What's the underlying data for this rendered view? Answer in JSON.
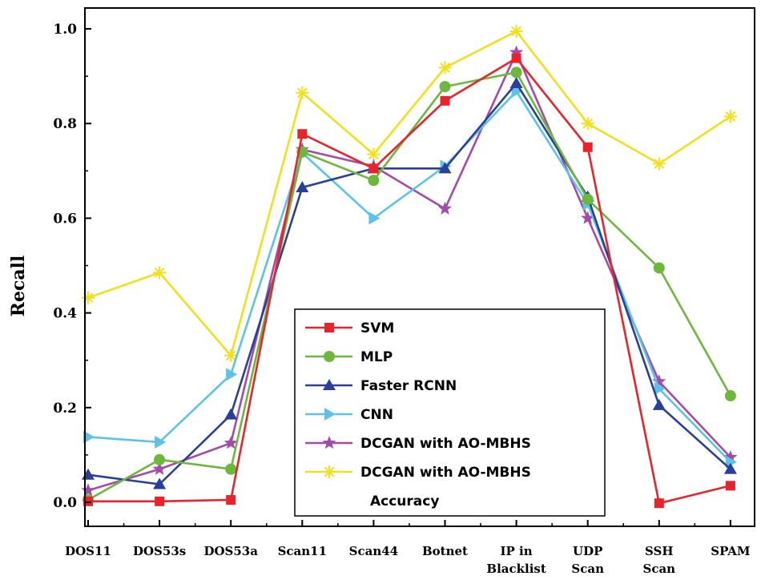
{
  "chart_data": {
    "type": "line",
    "title": "",
    "xlabel": "",
    "ylabel": "Recall",
    "ylim": [
      0.0,
      1.0
    ],
    "yticks": [
      "0.0",
      "0.2",
      "0.4",
      "0.6",
      "0.8",
      "1.0"
    ],
    "categories": [
      [
        "DOS11"
      ],
      [
        "DOS53s"
      ],
      [
        "DOS53a"
      ],
      [
        "Scan11"
      ],
      [
        "Scan44"
      ],
      [
        "Botnet"
      ],
      [
        "IP in",
        "Blacklist"
      ],
      [
        "UDP",
        "Scan"
      ],
      [
        "SSH",
        "Scan"
      ],
      [
        "SPAM"
      ]
    ],
    "legend_position": "center",
    "series": [
      {
        "name": "SVM",
        "color": "#e8242a",
        "marker": "square",
        "values": [
          0.002,
          0.002,
          0.005,
          0.778,
          0.705,
          0.848,
          0.938,
          0.75,
          -0.002,
          0.035
        ]
      },
      {
        "name": "MLP",
        "color": "#6cb83c",
        "marker": "circle",
        "values": [
          0.005,
          0.09,
          0.07,
          0.74,
          0.68,
          0.878,
          0.908,
          0.64,
          0.495,
          0.225
        ]
      },
      {
        "name": "Faster RCNN",
        "color": "#2a3f97",
        "marker": "triangle-up",
        "values": [
          0.058,
          0.038,
          0.185,
          0.665,
          0.705,
          0.705,
          0.885,
          0.645,
          0.205,
          0.07
        ]
      },
      {
        "name": "CNN",
        "color": "#5bc4e6",
        "marker": "triangle-right",
        "values": [
          0.138,
          0.127,
          0.27,
          0.738,
          0.6,
          0.71,
          0.868,
          0.63,
          0.24,
          0.085
        ]
      },
      {
        "name": "DCGAN with AO-MBHS",
        "color": "#a44aa8",
        "marker": "star",
        "values": [
          0.025,
          0.07,
          0.125,
          0.745,
          0.71,
          0.62,
          0.95,
          0.6,
          0.255,
          0.095
        ]
      },
      {
        "name": "DCGAN with AO-MBHS",
        "name_line2": "Accuracy",
        "color": "#f2e01c",
        "marker": "asterisk",
        "values": [
          0.432,
          0.485,
          0.31,
          0.865,
          0.735,
          0.918,
          0.995,
          0.8,
          0.715,
          0.815
        ]
      }
    ]
  }
}
